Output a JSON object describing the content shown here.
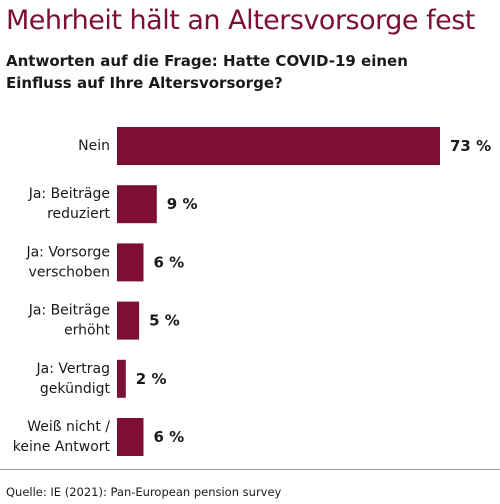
{
  "title": "Mehrheit hält an Altersvorsorge fest",
  "subtitle": "Antworten auf die Frage: Hatte COVID-19 einen Einfluss auf Ihre Altersvorsorge?",
  "source": "Quelle: IE (2021): Pan-European pension survey",
  "colors": {
    "bar": "#7d0f32",
    "title": "#7d0f32",
    "text": "#1a1a1a"
  },
  "chart_data": {
    "type": "bar",
    "orientation": "horizontal",
    "categories": [
      [
        "Nein"
      ],
      [
        "Ja: Beiträge",
        "reduziert"
      ],
      [
        "Ja: Vorsorge",
        "verschoben"
      ],
      [
        "Ja: Beiträge",
        "erhöht"
      ],
      [
        "Ja: Vertrag",
        "gekündigt"
      ],
      [
        "Weiß nicht /",
        "keine Antwort"
      ]
    ],
    "values": [
      73,
      9,
      6,
      5,
      2,
      6
    ],
    "value_labels": [
      "73 %",
      "9 %",
      "6 %",
      "5 %",
      "2 %",
      "6 %"
    ],
    "unit": "%",
    "xlim": [
      0,
      73
    ],
    "grid": false,
    "legend": "none"
  }
}
